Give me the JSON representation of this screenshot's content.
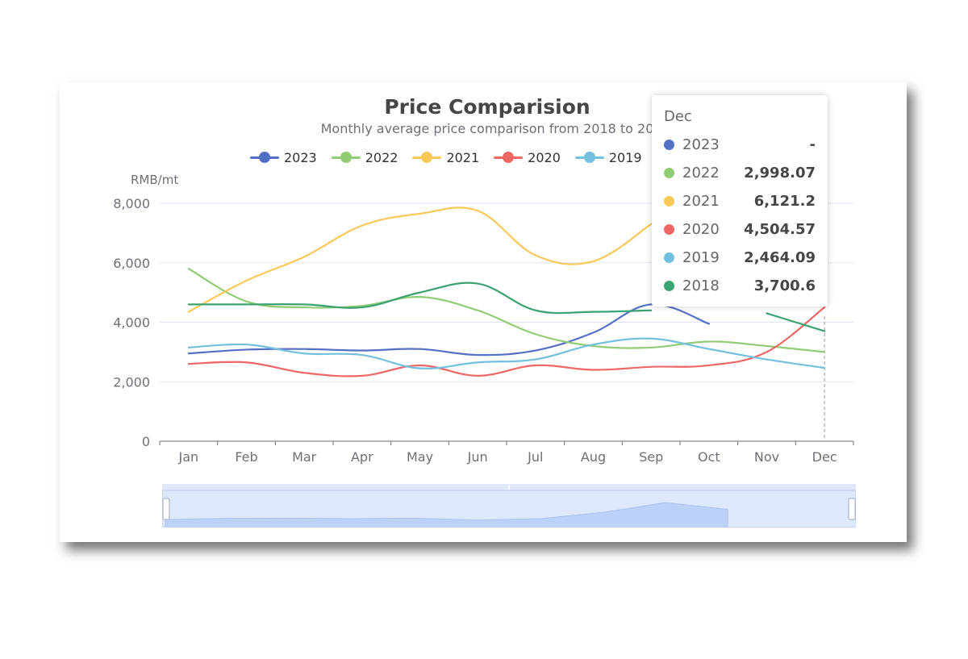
{
  "chart_data": {
    "type": "line",
    "title": "Price Comparision",
    "subtitle": "Monthly average price comparison from 2018 to 20",
    "ylabel": "RMB/mt",
    "ylim": [
      0,
      8000
    ],
    "yticks": [
      "0",
      "2,000",
      "4,000",
      "6,000",
      "8,000"
    ],
    "categories": [
      "Jan",
      "Feb",
      "Mar",
      "Apr",
      "May",
      "Jun",
      "Jul",
      "Aug",
      "Sep",
      "Oct",
      "Nov",
      "Dec"
    ],
    "legend_position": "top",
    "grid": true,
    "series": [
      {
        "name": "2023",
        "color": "#5470c6",
        "values": [
          2950,
          3080,
          3100,
          3050,
          3100,
          2900,
          3050,
          3650,
          4600,
          3950,
          null,
          null
        ]
      },
      {
        "name": "2022",
        "color": "#91cc75",
        "values": [
          5800,
          4700,
          4500,
          4550,
          4850,
          4400,
          3600,
          3200,
          3150,
          3350,
          3200,
          2998.07
        ]
      },
      {
        "name": "2021",
        "color": "#fac858",
        "values": [
          4350,
          5400,
          6200,
          7250,
          7650,
          7750,
          6250,
          6050,
          7300,
          null,
          null,
          6121.2
        ]
      },
      {
        "name": "2020",
        "color": "#ee6666",
        "values": [
          2600,
          2650,
          2300,
          2200,
          2550,
          2200,
          2550,
          2400,
          2500,
          2550,
          3000,
          4504.57
        ]
      },
      {
        "name": "2019",
        "color": "#73c0de",
        "values": [
          3150,
          3250,
          2950,
          2900,
          2450,
          2650,
          2750,
          3250,
          3450,
          3100,
          2750,
          2464.09
        ]
      },
      {
        "name": "2018",
        "color": "#3ba272",
        "values": [
          4600,
          4600,
          4600,
          4500,
          5000,
          5300,
          4400,
          4350,
          4400,
          null,
          4300,
          3700.6
        ]
      }
    ],
    "tooltip": {
      "title": "Dec",
      "rows": [
        {
          "name": "2023",
          "value": "-",
          "color": "#5470c6"
        },
        {
          "name": "2022",
          "value": "2,998.07",
          "color": "#91cc75"
        },
        {
          "name": "2021",
          "value": "6,121.2",
          "color": "#fac858"
        },
        {
          "name": "2020",
          "value": "4,504.57",
          "color": "#ee6666"
        },
        {
          "name": "2019",
          "value": "2,464.09",
          "color": "#73c0de"
        },
        {
          "name": "2018",
          "value": "3,700.6",
          "color": "#3ba272"
        }
      ]
    },
    "datazoom": {
      "start_fraction": 0,
      "end_fraction": 1
    }
  }
}
